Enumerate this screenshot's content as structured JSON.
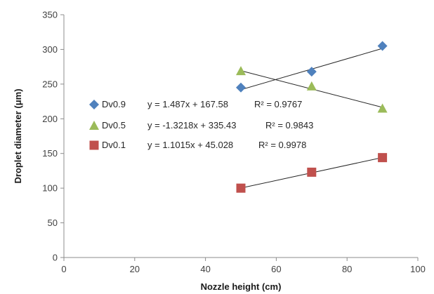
{
  "chart_data": {
    "type": "scatter",
    "xlabel": "Nozzle height (cm)",
    "ylabel": "Droplet diameter (μm)",
    "xlim": [
      0,
      100
    ],
    "ylim": [
      0,
      350
    ],
    "x_ticks": [
      "0",
      "20",
      "40",
      "60",
      "80",
      "100"
    ],
    "y_ticks": [
      "0",
      "50",
      "100",
      "150",
      "200",
      "250",
      "300",
      "350"
    ],
    "grid": false,
    "legend_position": "left",
    "series": [
      {
        "name": "Dv0.9",
        "marker": "diamond",
        "color": "#4f81bd",
        "x": [
          50,
          70,
          90
        ],
        "y": [
          245,
          268,
          305
        ],
        "trendline": {
          "slope": 1.487,
          "intercept": 167.58
        },
        "equation": "y = 1.487x + 167.58",
        "r2": "R² = 0.9767"
      },
      {
        "name": "Dv0.5",
        "marker": "triangle",
        "color": "#9bbb59",
        "x": [
          50,
          70,
          90
        ],
        "y": [
          269,
          247,
          215
        ],
        "trendline": {
          "slope": -1.3218,
          "intercept": 335.43
        },
        "equation": "y = -1.3218x + 335.43",
        "r2": "R² = 0.9843"
      },
      {
        "name": "Dv0.1",
        "marker": "square",
        "color": "#c0504d",
        "x": [
          50,
          70,
          90
        ],
        "y": [
          100,
          123,
          144
        ],
        "trendline": {
          "slope": 1.1015,
          "intercept": 45.028
        },
        "equation": "y = 1.1015x + 45.028",
        "r2": "R² = 0.9978"
      }
    ]
  }
}
